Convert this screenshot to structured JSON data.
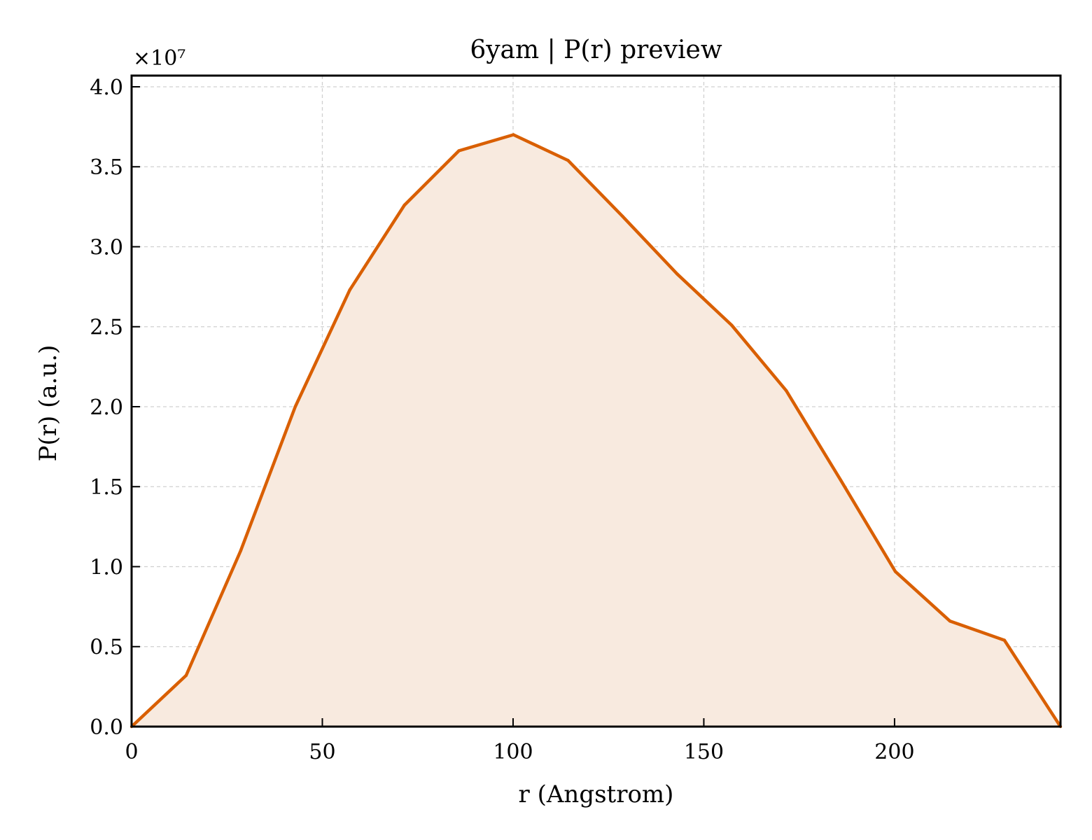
{
  "chart_data": {
    "type": "area",
    "title": "6yam | P(r) preview",
    "xlabel": "r (Angstrom)",
    "ylabel": "P(r) (a.u.)",
    "y_multiplier_label": "×10⁷",
    "y_multiplier": 10000000,
    "xlim": [
      0,
      243.5
    ],
    "ylim": [
      0,
      4.07
    ],
    "x_ticks": [
      0,
      50,
      100,
      150,
      200
    ],
    "x_tick_labels": [
      "0",
      "50",
      "100",
      "150",
      "200"
    ],
    "y_ticks": [
      0,
      0.5,
      1.0,
      1.5,
      2.0,
      2.5,
      3.0,
      3.5,
      4.0
    ],
    "y_tick_labels": [
      "0.0",
      "0.5",
      "1.0",
      "1.5",
      "2.0",
      "2.5",
      "3.0",
      "3.5",
      "4.0"
    ],
    "grid": true,
    "x": [
      0,
      14.3,
      28.6,
      42.9,
      57.2,
      71.5,
      85.8,
      100.1,
      114.4,
      128.7,
      143.0,
      157.3,
      171.6,
      185.9,
      200.2,
      214.5,
      228.8,
      243.5
    ],
    "y": [
      0.0,
      0.32,
      1.1,
      2.0,
      2.73,
      3.26,
      3.6,
      3.7,
      3.54,
      3.19,
      2.83,
      2.51,
      2.1,
      1.54,
      0.97,
      0.66,
      0.54,
      0.0
    ],
    "line_color": "#d95f02",
    "fill_color": "#f8eadf"
  }
}
